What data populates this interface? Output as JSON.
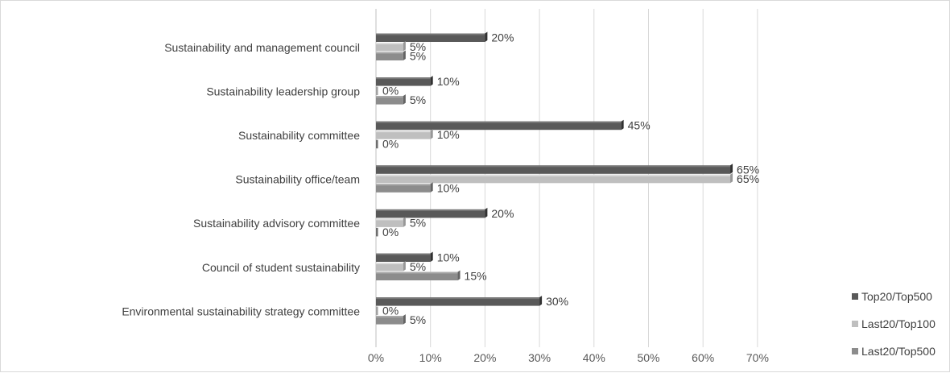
{
  "chart_data": {
    "type": "bar",
    "orientation": "horizontal",
    "title": "",
    "xlabel": "",
    "ylabel": "",
    "xlim": [
      0,
      70
    ],
    "x_ticks": [
      "0%",
      "10%",
      "20%",
      "30%",
      "40%",
      "50%",
      "60%",
      "70%"
    ],
    "x_tick_values": [
      0,
      10,
      20,
      30,
      40,
      50,
      60,
      70
    ],
    "grid": true,
    "legend_position": "bottom-right",
    "categories": [
      "Sustainability and management council",
      "Sustainability leadership group",
      "Sustainability committee",
      "Sustainability office/team",
      "Sustainability advisory committee",
      "Council of student sustainability",
      "Environmental sustainability strategy committee"
    ],
    "series": [
      {
        "name": "Top20/Top500",
        "color": "#595959",
        "values": [
          20,
          10,
          45,
          65,
          20,
          10,
          30
        ],
        "labels": [
          "20%",
          "10%",
          "45%",
          "65%",
          "20%",
          "10%",
          "30%"
        ]
      },
      {
        "name": "Last20/Top100",
        "color": "#bfbfbf",
        "values": [
          5,
          0,
          10,
          65,
          5,
          5,
          0
        ],
        "labels": [
          "5%",
          "0%",
          "10%",
          "65%",
          "5%",
          "5%",
          "0%"
        ]
      },
      {
        "name": "Last20/Top500",
        "color": "#8c8c8c",
        "values": [
          5,
          5,
          0,
          10,
          0,
          15,
          5
        ],
        "labels": [
          "5%",
          "5%",
          "0%",
          "10%",
          "0%",
          "15%",
          "5%"
        ]
      }
    ]
  }
}
